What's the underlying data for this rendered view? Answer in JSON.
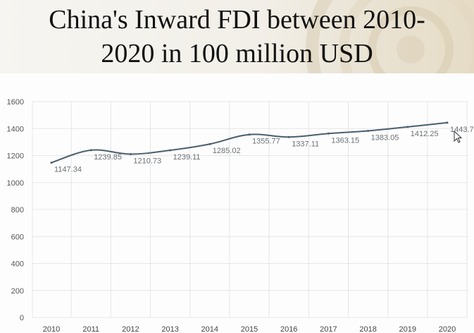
{
  "slide": {
    "title_line1": "China's Inward FDI between 2010-",
    "title_line2": "2020 in 100 million USD"
  },
  "chart_data": {
    "type": "line",
    "x": [
      "2010",
      "2011",
      "2012",
      "2013",
      "2014",
      "2015",
      "2016",
      "2017",
      "2018",
      "2019",
      "2020"
    ],
    "series": [
      {
        "values": [
          1147.34,
          1239.85,
          1210.73,
          1239.11,
          1285.02,
          1355.77,
          1337.11,
          1363.15,
          1383.05,
          1412.25,
          1443.7
        ]
      }
    ],
    "data_labels": [
      "1147.34",
      "1239.85",
      "1210.73",
      "1239.11",
      "1285.02",
      "1355.77",
      "1337.11",
      "1363.15",
      "1383.05",
      "1412.25",
      "1443.7"
    ],
    "yticks": [
      0,
      200,
      400,
      600,
      800,
      1000,
      1200,
      1400,
      1600
    ],
    "ylim": [
      0,
      1600
    ],
    "grid": true,
    "line_color": "#4a5f6e",
    "label_color": "#6b7176",
    "grid_color": "#e6e6e6"
  }
}
